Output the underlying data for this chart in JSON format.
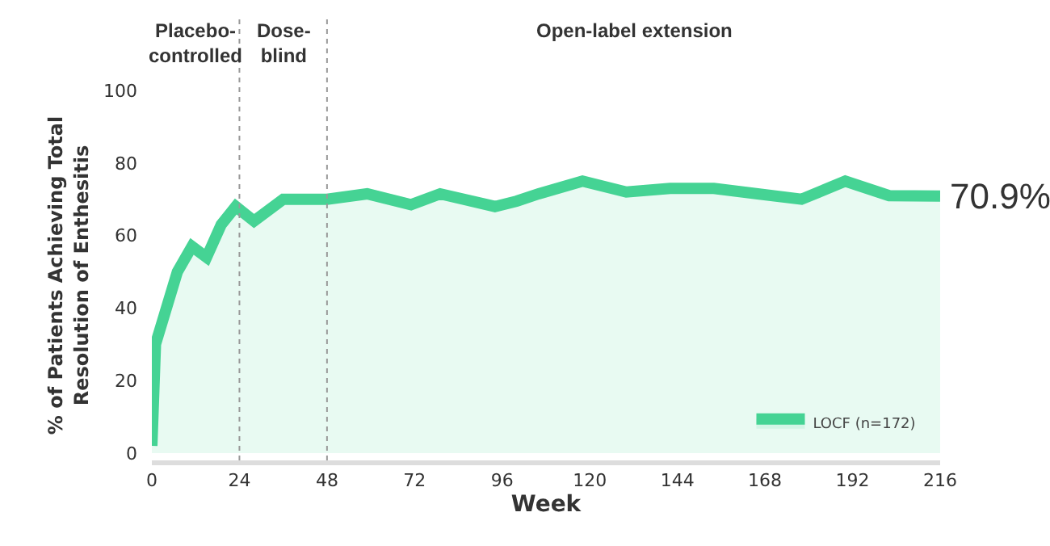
{
  "chart_data": {
    "type": "area",
    "xlabel": "Week",
    "ylabel": "% of Patients Achieving Total\nResolution of Enthesitis",
    "x": [
      0,
      1,
      7,
      11,
      15,
      19,
      23,
      28,
      36,
      48,
      59,
      71,
      79,
      94,
      100,
      106,
      118,
      130,
      142,
      154,
      166,
      178,
      190,
      202,
      216
    ],
    "series": [
      {
        "name": "LOCF (n=172)",
        "color": "#45d394",
        "values": [
          2,
          30,
          50,
          57,
          54,
          63,
          68,
          64,
          70,
          70,
          71.5,
          68.5,
          71.5,
          68,
          69.5,
          71.5,
          75,
          72,
          73,
          73,
          71.5,
          70,
          75,
          71,
          70.9
        ]
      }
    ],
    "xlim": [
      0,
      216
    ],
    "xticks": [
      0,
      24,
      48,
      72,
      96,
      120,
      144,
      168,
      192,
      216
    ],
    "ylim": [
      -2,
      100
    ],
    "yticks": [
      0,
      20,
      40,
      60,
      80,
      100
    ],
    "ref_lines": [
      {
        "axis": "x",
        "value": 24,
        "color": "#999999",
        "line_style": "dotted"
      },
      {
        "axis": "x",
        "value": 48,
        "color": "#999999",
        "line_style": "dotted"
      }
    ],
    "annotations": [
      "Placebo-\ncontrolled",
      "Dose-\nblind",
      "Open-label extension",
      {
        "text": "70.9%",
        "x": 216,
        "y": 70.9
      }
    ],
    "legend": "bottom right",
    "marker": "none",
    "line_style": "solid"
  }
}
